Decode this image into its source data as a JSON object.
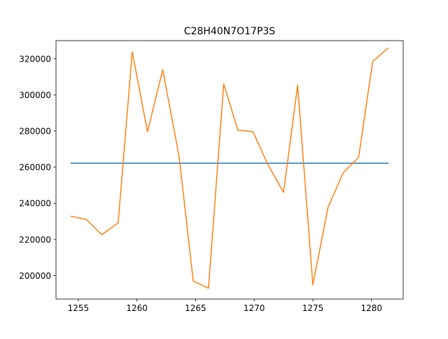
{
  "chart_data": {
    "type": "line",
    "title": "C28H40N7O17P3S",
    "xlabel": "",
    "ylabel": "",
    "xlim": [
      1253.1,
      1282.7
    ],
    "ylim": [
      187000,
      330000
    ],
    "xticks": [
      1255,
      1260,
      1265,
      1270,
      1275,
      1280
    ],
    "yticks": [
      200000,
      220000,
      240000,
      260000,
      280000,
      300000,
      320000
    ],
    "grid": false,
    "series": [
      {
        "color": "#1f77b4",
        "x": [
          1254.4,
          1281.4
        ],
        "y": [
          262200,
          262200
        ]
      },
      {
        "color": "#ff7f0e",
        "x": [
          1254.4,
          1255.7,
          1257.0,
          1258.4,
          1259.6,
          1260.9,
          1262.2,
          1263.6,
          1264.8,
          1266.1,
          1267.4,
          1268.6,
          1269.9,
          1271.1,
          1272.5,
          1273.7,
          1275.0,
          1276.3,
          1277.6,
          1278.9,
          1280.1,
          1281.4
        ],
        "y": [
          232800,
          231000,
          222600,
          229200,
          323700,
          279600,
          313900,
          265700,
          197000,
          193000,
          306000,
          280500,
          279600,
          262200,
          246000,
          305300,
          194900,
          238000,
          257000,
          265400,
          318500,
          325800
        ]
      }
    ]
  }
}
